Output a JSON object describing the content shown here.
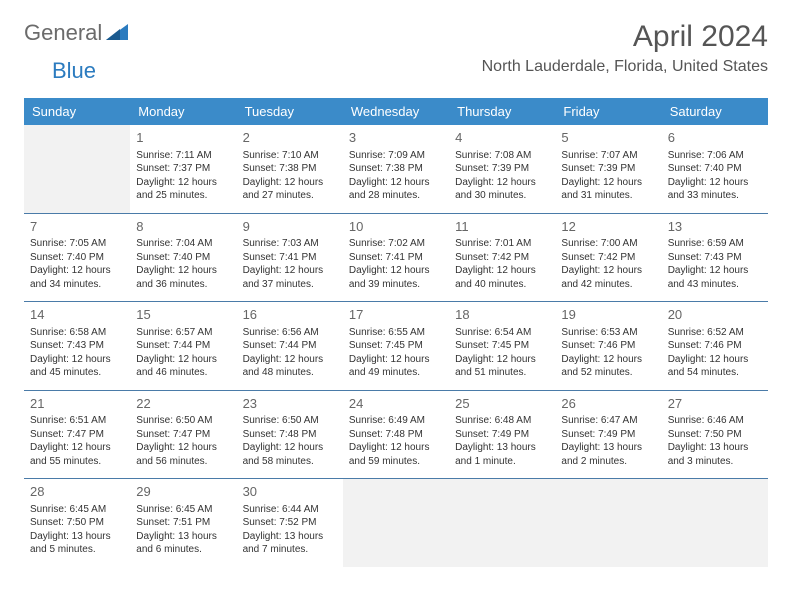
{
  "logo": {
    "text1": "General",
    "text2": "Blue"
  },
  "title": "April 2024",
  "location": "North Lauderdale, Florida, United States",
  "header_bg": "#3b8bc9",
  "header_fg": "#ffffff",
  "border_color": "#4a7ba8",
  "empty_bg": "#f2f2f2",
  "day_headers": [
    "Sunday",
    "Monday",
    "Tuesday",
    "Wednesday",
    "Thursday",
    "Friday",
    "Saturday"
  ],
  "weeks": [
    [
      null,
      {
        "n": "1",
        "sr": "Sunrise: 7:11 AM",
        "ss": "Sunset: 7:37 PM",
        "d1": "Daylight: 12 hours",
        "d2": "and 25 minutes."
      },
      {
        "n": "2",
        "sr": "Sunrise: 7:10 AM",
        "ss": "Sunset: 7:38 PM",
        "d1": "Daylight: 12 hours",
        "d2": "and 27 minutes."
      },
      {
        "n": "3",
        "sr": "Sunrise: 7:09 AM",
        "ss": "Sunset: 7:38 PM",
        "d1": "Daylight: 12 hours",
        "d2": "and 28 minutes."
      },
      {
        "n": "4",
        "sr": "Sunrise: 7:08 AM",
        "ss": "Sunset: 7:39 PM",
        "d1": "Daylight: 12 hours",
        "d2": "and 30 minutes."
      },
      {
        "n": "5",
        "sr": "Sunrise: 7:07 AM",
        "ss": "Sunset: 7:39 PM",
        "d1": "Daylight: 12 hours",
        "d2": "and 31 minutes."
      },
      {
        "n": "6",
        "sr": "Sunrise: 7:06 AM",
        "ss": "Sunset: 7:40 PM",
        "d1": "Daylight: 12 hours",
        "d2": "and 33 minutes."
      }
    ],
    [
      {
        "n": "7",
        "sr": "Sunrise: 7:05 AM",
        "ss": "Sunset: 7:40 PM",
        "d1": "Daylight: 12 hours",
        "d2": "and 34 minutes."
      },
      {
        "n": "8",
        "sr": "Sunrise: 7:04 AM",
        "ss": "Sunset: 7:40 PM",
        "d1": "Daylight: 12 hours",
        "d2": "and 36 minutes."
      },
      {
        "n": "9",
        "sr": "Sunrise: 7:03 AM",
        "ss": "Sunset: 7:41 PM",
        "d1": "Daylight: 12 hours",
        "d2": "and 37 minutes."
      },
      {
        "n": "10",
        "sr": "Sunrise: 7:02 AM",
        "ss": "Sunset: 7:41 PM",
        "d1": "Daylight: 12 hours",
        "d2": "and 39 minutes."
      },
      {
        "n": "11",
        "sr": "Sunrise: 7:01 AM",
        "ss": "Sunset: 7:42 PM",
        "d1": "Daylight: 12 hours",
        "d2": "and 40 minutes."
      },
      {
        "n": "12",
        "sr": "Sunrise: 7:00 AM",
        "ss": "Sunset: 7:42 PM",
        "d1": "Daylight: 12 hours",
        "d2": "and 42 minutes."
      },
      {
        "n": "13",
        "sr": "Sunrise: 6:59 AM",
        "ss": "Sunset: 7:43 PM",
        "d1": "Daylight: 12 hours",
        "d2": "and 43 minutes."
      }
    ],
    [
      {
        "n": "14",
        "sr": "Sunrise: 6:58 AM",
        "ss": "Sunset: 7:43 PM",
        "d1": "Daylight: 12 hours",
        "d2": "and 45 minutes."
      },
      {
        "n": "15",
        "sr": "Sunrise: 6:57 AM",
        "ss": "Sunset: 7:44 PM",
        "d1": "Daylight: 12 hours",
        "d2": "and 46 minutes."
      },
      {
        "n": "16",
        "sr": "Sunrise: 6:56 AM",
        "ss": "Sunset: 7:44 PM",
        "d1": "Daylight: 12 hours",
        "d2": "and 48 minutes."
      },
      {
        "n": "17",
        "sr": "Sunrise: 6:55 AM",
        "ss": "Sunset: 7:45 PM",
        "d1": "Daylight: 12 hours",
        "d2": "and 49 minutes."
      },
      {
        "n": "18",
        "sr": "Sunrise: 6:54 AM",
        "ss": "Sunset: 7:45 PM",
        "d1": "Daylight: 12 hours",
        "d2": "and 51 minutes."
      },
      {
        "n": "19",
        "sr": "Sunrise: 6:53 AM",
        "ss": "Sunset: 7:46 PM",
        "d1": "Daylight: 12 hours",
        "d2": "and 52 minutes."
      },
      {
        "n": "20",
        "sr": "Sunrise: 6:52 AM",
        "ss": "Sunset: 7:46 PM",
        "d1": "Daylight: 12 hours",
        "d2": "and 54 minutes."
      }
    ],
    [
      {
        "n": "21",
        "sr": "Sunrise: 6:51 AM",
        "ss": "Sunset: 7:47 PM",
        "d1": "Daylight: 12 hours",
        "d2": "and 55 minutes."
      },
      {
        "n": "22",
        "sr": "Sunrise: 6:50 AM",
        "ss": "Sunset: 7:47 PM",
        "d1": "Daylight: 12 hours",
        "d2": "and 56 minutes."
      },
      {
        "n": "23",
        "sr": "Sunrise: 6:50 AM",
        "ss": "Sunset: 7:48 PM",
        "d1": "Daylight: 12 hours",
        "d2": "and 58 minutes."
      },
      {
        "n": "24",
        "sr": "Sunrise: 6:49 AM",
        "ss": "Sunset: 7:48 PM",
        "d1": "Daylight: 12 hours",
        "d2": "and 59 minutes."
      },
      {
        "n": "25",
        "sr": "Sunrise: 6:48 AM",
        "ss": "Sunset: 7:49 PM",
        "d1": "Daylight: 13 hours",
        "d2": "and 1 minute."
      },
      {
        "n": "26",
        "sr": "Sunrise: 6:47 AM",
        "ss": "Sunset: 7:49 PM",
        "d1": "Daylight: 13 hours",
        "d2": "and 2 minutes."
      },
      {
        "n": "27",
        "sr": "Sunrise: 6:46 AM",
        "ss": "Sunset: 7:50 PM",
        "d1": "Daylight: 13 hours",
        "d2": "and 3 minutes."
      }
    ],
    [
      {
        "n": "28",
        "sr": "Sunrise: 6:45 AM",
        "ss": "Sunset: 7:50 PM",
        "d1": "Daylight: 13 hours",
        "d2": "and 5 minutes."
      },
      {
        "n": "29",
        "sr": "Sunrise: 6:45 AM",
        "ss": "Sunset: 7:51 PM",
        "d1": "Daylight: 13 hours",
        "d2": "and 6 minutes."
      },
      {
        "n": "30",
        "sr": "Sunrise: 6:44 AM",
        "ss": "Sunset: 7:52 PM",
        "d1": "Daylight: 13 hours",
        "d2": "and 7 minutes."
      },
      null,
      null,
      null,
      null
    ]
  ]
}
